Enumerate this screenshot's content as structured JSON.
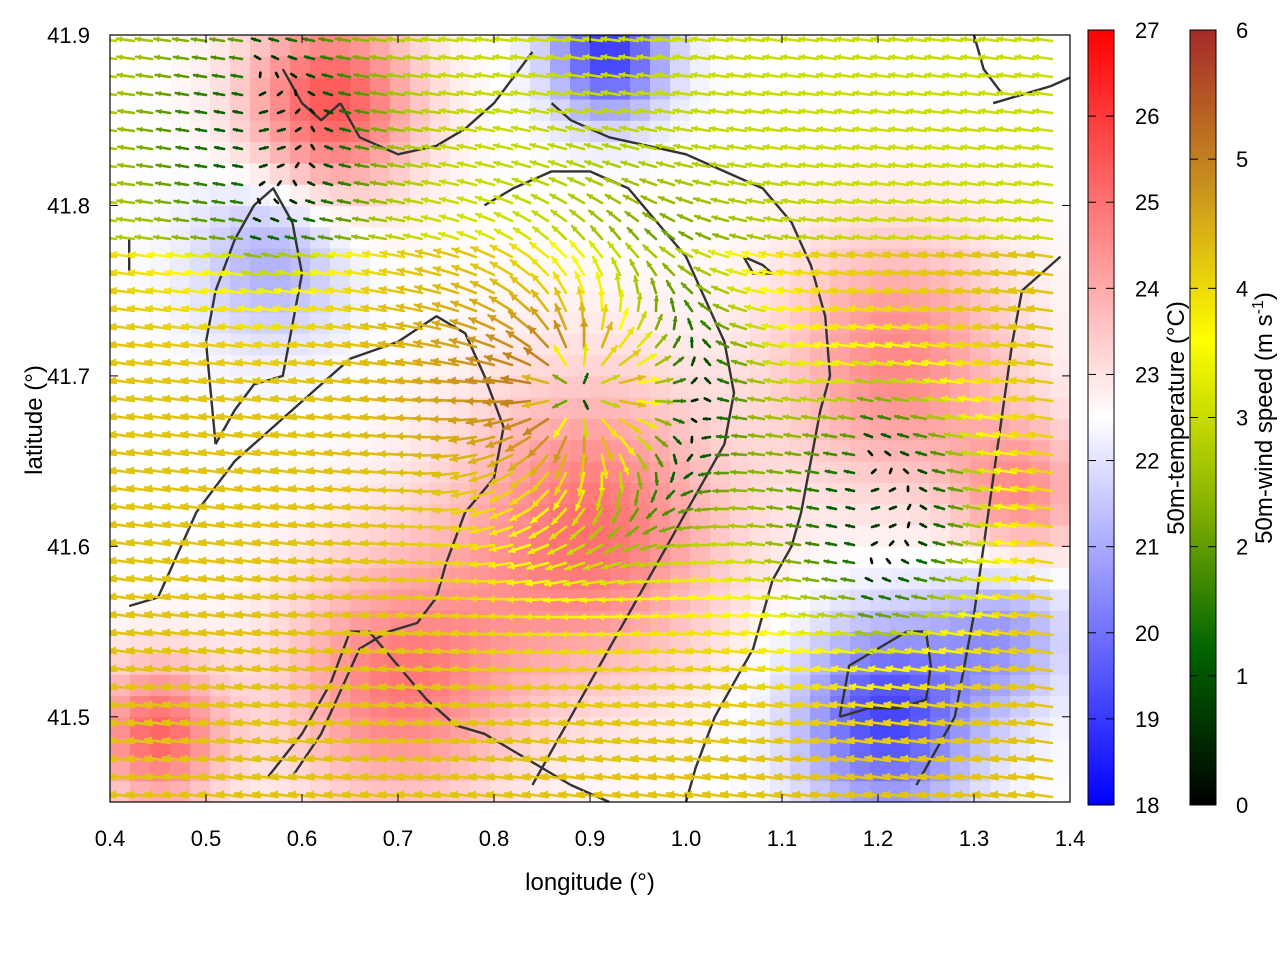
{
  "chart_data": {
    "type": "heatmap",
    "title": "",
    "xlabel": "longitude (°)",
    "ylabel": "latitude (°)",
    "xlim": [
      0.4,
      1.4
    ],
    "ylim": [
      41.45,
      41.9
    ],
    "x_ticks": [
      "0.4",
      "0.5",
      "0.6",
      "0.7",
      "0.8",
      "0.9",
      "1.0",
      "1.1",
      "1.2",
      "1.3",
      "1.4"
    ],
    "y_ticks": [
      "41.5",
      "41.6",
      "41.7",
      "41.8",
      "41.9"
    ],
    "temperature_colorbar": {
      "label": "50m-temperature (°C)",
      "range": [
        18,
        27
      ],
      "ticks": [
        "18",
        "19",
        "20",
        "21",
        "22",
        "23",
        "24",
        "25",
        "26",
        "27"
      ],
      "colors": {
        "low": "#0000ff",
        "mid": "#ffffff",
        "high": "#ff0000"
      }
    },
    "wind_colorbar": {
      "label_main": "50m-wind speed (m s",
      "label_sup": "-1",
      "label_end": ")",
      "range": [
        0,
        6
      ],
      "ticks": [
        "0",
        "1",
        "2",
        "3",
        "4",
        "5",
        "6"
      ],
      "colors": [
        "#000000",
        "#006400",
        "#8fb800",
        "#ffff00",
        "#c8901e",
        "#a52a2a"
      ]
    },
    "temperature_features": [
      {
        "lon": 0.63,
        "lat": 41.86,
        "temp": 25.5,
        "r": 0.09
      },
      {
        "lon": 0.9,
        "lat": 41.61,
        "temp": 25.0,
        "r": 0.14
      },
      {
        "lon": 0.7,
        "lat": 41.52,
        "temp": 24.8,
        "r": 0.12
      },
      {
        "lon": 0.45,
        "lat": 41.49,
        "temp": 25.2,
        "r": 0.07
      },
      {
        "lon": 1.22,
        "lat": 41.71,
        "temp": 24.6,
        "r": 0.12
      },
      {
        "lon": 1.35,
        "lat": 41.63,
        "temp": 24.4,
        "r": 0.07
      },
      {
        "lon": 0.92,
        "lat": 41.89,
        "temp": 19.0,
        "r": 0.06
      },
      {
        "lon": 0.57,
        "lat": 41.77,
        "temp": 21.0,
        "r": 0.08
      },
      {
        "lon": 1.21,
        "lat": 41.5,
        "temp": 19.2,
        "r": 0.09
      },
      {
        "lon": 1.33,
        "lat": 41.55,
        "temp": 20.8,
        "r": 0.07
      }
    ],
    "wind_features": [
      {
        "lon": 0.89,
        "lat": 41.69,
        "kind": "divergence",
        "strength": 6.0
      },
      {
        "lon": 1.19,
        "lat": 41.62,
        "kind": "calm",
        "strength": 1.0
      },
      {
        "lon": 0.55,
        "lat": 41.84,
        "kind": "calm",
        "strength": 1.2
      }
    ],
    "contours": [
      [
        [
          0.42,
          41.565
        ],
        [
          0.45,
          41.57
        ],
        [
          0.49,
          41.62
        ],
        [
          0.53,
          41.65
        ],
        [
          0.57,
          41.67
        ],
        [
          0.61,
          41.69
        ],
        [
          0.65,
          41.71
        ],
        [
          0.7,
          41.72
        ],
        [
          0.74,
          41.735
        ],
        [
          0.77,
          41.725
        ],
        [
          0.79,
          41.7
        ],
        [
          0.81,
          41.67
        ],
        [
          0.8,
          41.64
        ],
        [
          0.77,
          41.62
        ],
        [
          0.75,
          41.59
        ],
        [
          0.74,
          41.57
        ],
        [
          0.72,
          41.555
        ],
        [
          0.69,
          41.55
        ],
        [
          0.66,
          41.54
        ],
        [
          0.64,
          41.515
        ],
        [
          0.62,
          41.49
        ],
        [
          0.59,
          41.465
        ]
      ],
      [
        [
          0.565,
          41.465
        ],
        [
          0.6,
          41.49
        ],
        [
          0.63,
          41.52
        ],
        [
          0.65,
          41.55
        ],
        [
          0.67,
          41.55
        ],
        [
          0.7,
          41.53
        ],
        [
          0.73,
          41.51
        ],
        [
          0.76,
          41.495
        ],
        [
          0.79,
          41.49
        ],
        [
          0.82,
          41.48
        ],
        [
          0.85,
          41.47
        ],
        [
          0.88,
          41.46
        ],
        [
          0.92,
          41.45
        ]
      ],
      [
        [
          0.51,
          41.66
        ],
        [
          0.53,
          41.68
        ],
        [
          0.55,
          41.695
        ],
        [
          0.58,
          41.7
        ],
        [
          0.59,
          41.73
        ],
        [
          0.6,
          41.76
        ],
        [
          0.59,
          41.79
        ],
        [
          0.57,
          41.81
        ],
        [
          0.55,
          41.8
        ],
        [
          0.53,
          41.78
        ],
        [
          0.51,
          41.75
        ],
        [
          0.5,
          41.72
        ],
        [
          0.505,
          41.69
        ],
        [
          0.51,
          41.66
        ]
      ],
      [
        [
          0.42,
          41.78
        ],
        [
          0.42,
          41.76
        ]
      ],
      [
        [
          0.64,
          41.86
        ],
        [
          0.66,
          41.84
        ],
        [
          0.7,
          41.83
        ],
        [
          0.74,
          41.835
        ],
        [
          0.77,
          41.845
        ],
        [
          0.8,
          41.86
        ],
        [
          0.82,
          41.875
        ],
        [
          0.84,
          41.89
        ]
      ],
      [
        [
          0.58,
          41.88
        ],
        [
          0.6,
          41.86
        ],
        [
          0.62,
          41.85
        ],
        [
          0.64,
          41.86
        ]
      ],
      [
        [
          0.86,
          41.86
        ],
        [
          0.88,
          41.85
        ],
        [
          0.92,
          41.84
        ],
        [
          0.96,
          41.835
        ],
        [
          1.0,
          41.83
        ],
        [
          1.04,
          41.82
        ],
        [
          1.08,
          41.81
        ],
        [
          1.11,
          41.79
        ],
        [
          1.13,
          41.765
        ],
        [
          1.145,
          41.735
        ],
        [
          1.15,
          41.7
        ],
        [
          1.14,
          41.68
        ],
        [
          1.13,
          41.65
        ],
        [
          1.12,
          41.62
        ],
        [
          1.11,
          41.6
        ],
        [
          1.09,
          41.58
        ],
        [
          1.08,
          41.56
        ],
        [
          1.07,
          41.54
        ],
        [
          1.05,
          41.52
        ],
        [
          1.03,
          41.5
        ],
        [
          1.01,
          41.47
        ],
        [
          1.0,
          41.45
        ]
      ],
      [
        [
          0.79,
          41.8
        ],
        [
          0.82,
          41.81
        ],
        [
          0.86,
          41.82
        ],
        [
          0.9,
          41.82
        ],
        [
          0.94,
          41.81
        ],
        [
          0.97,
          41.79
        ],
        [
          1.0,
          41.77
        ],
        [
          1.02,
          41.745
        ],
        [
          1.04,
          41.72
        ],
        [
          1.05,
          41.69
        ],
        [
          1.04,
          41.66
        ],
        [
          1.02,
          41.64
        ],
        [
          1.0,
          41.62
        ],
        [
          0.98,
          41.6
        ],
        [
          0.96,
          41.58
        ],
        [
          0.94,
          41.56
        ],
        [
          0.92,
          41.54
        ],
        [
          0.9,
          41.52
        ],
        [
          0.88,
          41.5
        ],
        [
          0.86,
          41.48
        ],
        [
          0.84,
          41.46
        ]
      ],
      [
        [
          1.06,
          41.77
        ],
        [
          1.08,
          41.765
        ],
        [
          1.09,
          41.76
        ],
        [
          1.07,
          41.76
        ],
        [
          1.06,
          41.77
        ]
      ],
      [
        [
          1.24,
          41.46
        ],
        [
          1.26,
          41.48
        ],
        [
          1.28,
          41.5
        ],
        [
          1.29,
          41.53
        ],
        [
          1.3,
          41.56
        ],
        [
          1.31,
          41.6
        ],
        [
          1.32,
          41.64
        ],
        [
          1.33,
          41.68
        ],
        [
          1.34,
          41.72
        ],
        [
          1.35,
          41.75
        ],
        [
          1.37,
          41.76
        ],
        [
          1.39,
          41.77
        ]
      ],
      [
        [
          1.16,
          41.5
        ],
        [
          1.19,
          41.505
        ],
        [
          1.22,
          41.505
        ],
        [
          1.25,
          41.51
        ],
        [
          1.255,
          41.53
        ],
        [
          1.25,
          41.55
        ],
        [
          1.23,
          41.55
        ],
        [
          1.2,
          41.54
        ],
        [
          1.17,
          41.53
        ],
        [
          1.16,
          41.5
        ]
      ],
      [
        [
          1.32,
          41.86
        ],
        [
          1.35,
          41.865
        ],
        [
          1.38,
          41.87
        ],
        [
          1.4,
          41.875
        ]
      ],
      [
        [
          1.3,
          41.9
        ],
        [
          1.31,
          41.88
        ],
        [
          1.33,
          41.865
        ]
      ]
    ]
  }
}
